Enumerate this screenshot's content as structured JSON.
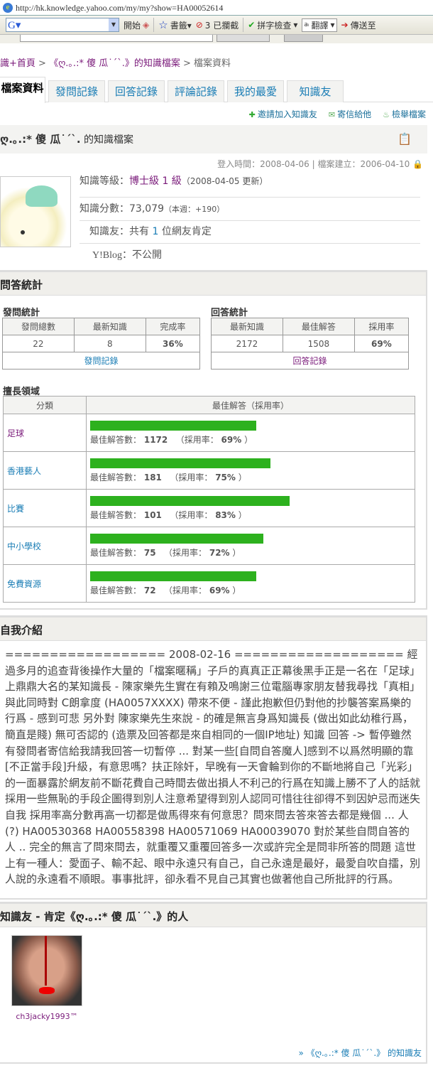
{
  "browser": {
    "url": "http://hk.knowledge.yahoo.com/my/my?show=HA00052614",
    "toolbar": {
      "start": "開始",
      "bookmarks": "書籤▾",
      "blocked": "3 已攔截",
      "spellcheck": "拼字檢查",
      "translate": "翻譯",
      "send": "傳送至"
    }
  },
  "breadcrumb": {
    "home": "識+首頁",
    "sep": " > ",
    "profile": "《ღ.｡.:* 傻 瓜˙ˊˋ.》的知識檔案",
    "current": "檔案資料"
  },
  "tabs": [
    {
      "label": "檔案資料"
    },
    {
      "label": "發問記錄"
    },
    {
      "label": "回答記錄"
    },
    {
      "label": "評論記錄"
    },
    {
      "label": "我的最愛"
    },
    {
      "label": "知識友"
    }
  ],
  "actions": {
    "invite": "邀請加入知識友",
    "mail": "寄信給他",
    "report": "檢舉檔案"
  },
  "profile": {
    "name": "ღ.｡.:* 傻 瓜˙ˊˋ.",
    "title_suffix": " 的知識檔案",
    "login": "登入時間：2008-04-06 | 檔案建立：2006-04-10",
    "level_label": "知識等級：",
    "level": "博士級 1 級",
    "level_note": "（2008-04-05 更新）",
    "score_label": "知識分數：",
    "score": "73,079",
    "score_note": "（本週：+190）",
    "friends_label": "知識友：",
    "friends_pre": "共有 ",
    "friends_count": "1",
    "friends_post": " 位網友肯定",
    "blog_label": "Y!Blog：",
    "blog": "不公開"
  },
  "stats": {
    "title": "問答統計",
    "ask": {
      "title": "發問統計",
      "headers": [
        "發問總數",
        "最新知識",
        "完成率"
      ],
      "values": [
        "22",
        "8",
        "36%"
      ],
      "link": "發問記錄"
    },
    "answer": {
      "title": "回答統計",
      "headers": [
        "最新知識",
        "最佳解答",
        "採用率"
      ],
      "values": [
        "2172",
        "1508",
        "69%"
      ],
      "link": "回答記錄"
    },
    "expertise": {
      "title": "擅長領域",
      "headers": [
        "分類",
        "最佳解答（採用率）"
      ],
      "rows": [
        {
          "category": "足球",
          "best": "1172",
          "rate": 69,
          "text_pre": "最佳解答數：",
          "rate_label": "（採用率：",
          "rate_text": "69%",
          "close": " ）"
        },
        {
          "category": "香港藝人",
          "best": "181",
          "rate": 75,
          "text_pre": "最佳解答數：",
          "rate_label": "（採用率：",
          "rate_text": "75%",
          "close": " ）"
        },
        {
          "category": "比賽",
          "best": "101",
          "rate": 83,
          "text_pre": "最佳解答數：",
          "rate_label": "（採用率：",
          "rate_text": "83%",
          "close": " ）"
        },
        {
          "category": "中小學校",
          "best": "75",
          "rate": 72,
          "text_pre": "最佳解答數：",
          "rate_label": "（採用率：",
          "rate_text": "72%",
          "close": " ）"
        },
        {
          "category": "免費資源",
          "best": "72",
          "rate": 69,
          "text_pre": "最佳解答數：",
          "rate_label": "（採用率：",
          "rate_text": "69%",
          "close": " ）"
        }
      ]
    }
  },
  "intro": {
    "title": "自我介紹",
    "text": "================== 2008-02-16 =================== 經過多月的追查背後操作大量的「檔案暱稱」子戶的真真正正幕後黑手正是一名在「足球」上鼎鼎大名的某知識長 - 陳家樂先生實在有賴及鳴謝三位電腦專家朋友替我尋找「真相」 與此同時對 C朗拿度 (HA0057XXXX) 帶來不便 - 謹此抱歉但仍對他的抄襲答案爲樂的行爲 - 感到可悲 另外對 陳家樂先生來說 - 的確是無言身爲知識長 (做出如此幼稚行爲，簡直是賤) 無可否認的 (造票及回答都是來自相同的一個IP地址) 知識 回答 -> 暫停雖然有發問者寄信給我請我回答一切暫停 ... 對某一些[自問自答魔人]感到不以爲然明顯的靠[不正當手段]升級，有意思嗎？扶正除奸，早晚有一天會輪到你的不斷地將自己「光彩」的一面暴露於網友前不斷花費自己時間去做出損人不利己的行爲在知識上勝不了人的話就採用一些無恥的手段企圖得到別人注意希望得到別人認同可惜往往卻得不到因妒忌而迷失自我 採用率高分數再高一切都是做馬得來有何意思？問來問去答來答去都是幾個 ... 人(?) HA00530368 HA00558398 HA00571069 HA00039070 對於某些自問自答的人 .. 完全的無言了問來問去，就重覆又重覆回答多一次或許完全是問非所答的問題 這世上有一種人：愛面子、輸不起、眼中永遠只有自己，自己永遠是最好，最愛自吹自擂，別人說的永遠看不順眼。事事批評，卻永看不見自己其實也做著他自己所批評的行爲。"
  },
  "friends": {
    "title": "知識友 - 肯定《ღ.｡.:* 傻 瓜˙ˊˋ.》的人",
    "items": [
      {
        "name": "ch3jacky1993™"
      }
    ],
    "more": "» 《ღ.｡.:* 傻 瓜˙ˊˋ.》 的知識友"
  },
  "colors": {
    "link": "#1a7db5",
    "visited": "#7a1a7a",
    "bar": "#2db11e"
  }
}
